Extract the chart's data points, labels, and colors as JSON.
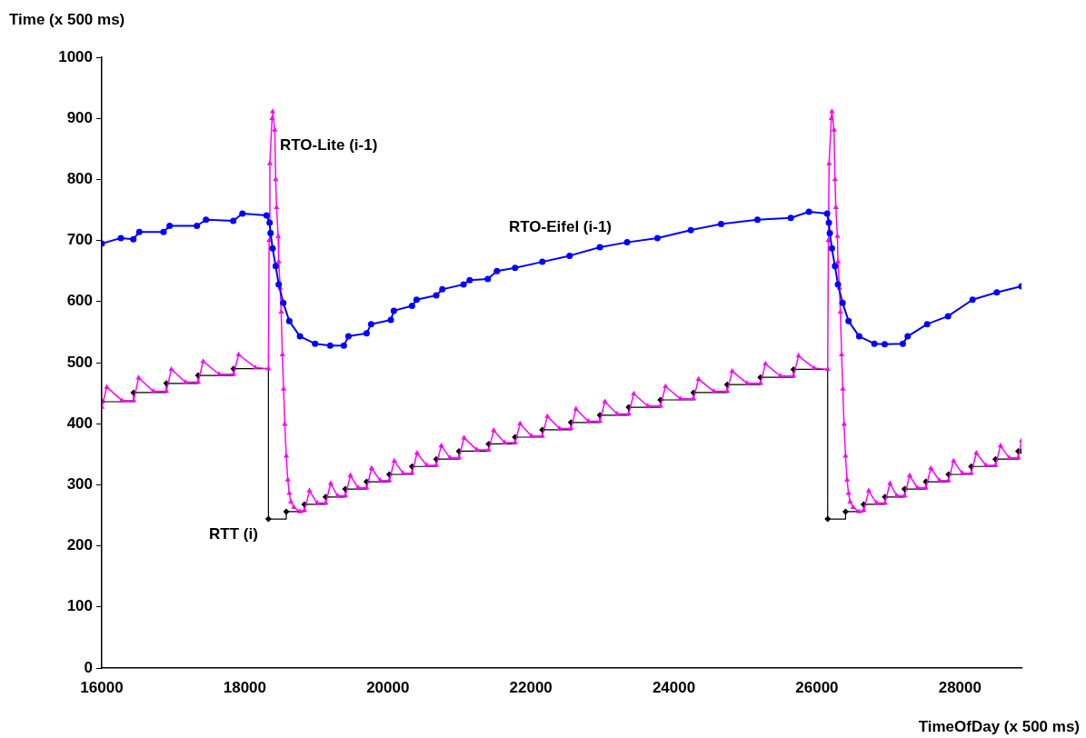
{
  "chart_data": {
    "type": "line",
    "xlabel": "TimeOfDay (x 500 ms)",
    "ylabel": "Time (x 500 ms)",
    "xlim": [
      16000,
      28860
    ],
    "xticks": [
      16000,
      18000,
      20000,
      22000,
      24000,
      26000,
      28000
    ],
    "ylim": [
      0,
      1000
    ],
    "yticks": [
      0,
      100,
      200,
      300,
      400,
      500,
      600,
      700,
      800,
      900,
      1000
    ],
    "grid": false,
    "series": [
      {
        "name": "RTO-Eifel (i-1)",
        "color": "#0000ff",
        "marker": "circle",
        "x": [
          16000,
          16267,
          16441,
          16525,
          16864,
          16949,
          17330,
          17457,
          17839,
          17966,
          18304,
          18347,
          18360,
          18389,
          18432,
          18474,
          18538,
          18622,
          18771,
          18983,
          19194,
          19385,
          19449,
          19703,
          19766,
          20042,
          20084,
          20338,
          20402,
          20677,
          20762,
          21059,
          21144,
          21398,
          21525,
          21779,
          22160,
          22541,
          22965,
          23346,
          23770,
          24236,
          24660,
          25168,
          25634,
          25888,
          26142,
          26167,
          26180,
          26209,
          26252,
          26294,
          26358,
          26442,
          26591,
          26803,
          26947,
          27201,
          27269,
          27541,
          27833,
          28176,
          28515,
          28860
        ],
        "values": [
          695,
          704,
          702,
          714,
          714,
          724,
          724,
          734,
          732,
          744,
          741,
          729,
          712,
          687,
          658,
          628,
          598,
          568,
          543,
          531,
          528,
          528,
          543,
          548,
          563,
          570,
          585,
          593,
          603,
          610,
          620,
          628,
          635,
          637,
          650,
          655,
          665,
          675,
          689,
          697,
          704,
          717,
          727,
          734,
          737,
          747,
          744,
          729,
          712,
          687,
          658,
          628,
          598,
          568,
          543,
          531,
          530,
          531,
          543,
          563,
          576,
          603,
          615,
          625
        ]
      },
      {
        "name": "RTO-Lite (i-1)",
        "color": "#ff00ff",
        "marker": "triangle",
        "x": [
          16000,
          16070,
          16280,
          16445,
          16515,
          16720,
          16903,
          16973,
          17170,
          17347,
          17417,
          17640,
          17843,
          17913,
          18150,
          18330,
          18340,
          18350,
          18381,
          18389,
          18419,
          18432,
          18444,
          18466,
          18474,
          18495,
          18508,
          18525,
          18542,
          18559,
          18580,
          18601,
          18622,
          18644,
          18686,
          18771,
          18834,
          18904,
          19012,
          19131,
          19201,
          19296,
          19406,
          19476,
          19584,
          19703,
          19773,
          19893,
          20020,
          20090,
          20211,
          20338,
          20408,
          20541,
          20677,
          20747,
          20868,
          20995,
          21065,
          21244,
          21410,
          21480,
          21631,
          21779,
          21849,
          22008,
          22160,
          22230,
          22400,
          22560,
          22630,
          22803,
          22965,
          23035,
          23207,
          23368,
          23438,
          23634,
          23812,
          23882,
          24089,
          24274,
          24344,
          24557,
          24745,
          24815,
          25024,
          25210,
          25280,
          25487,
          25672,
          25742,
          25959,
          26150,
          26160,
          26170,
          26201,
          26209,
          26239,
          26252,
          26264,
          26286,
          26294,
          26315,
          26328,
          26345,
          26362,
          26379,
          26400,
          26421,
          26442,
          26464,
          26506,
          26591,
          26654,
          26724,
          26832,
          26951,
          27021,
          27116,
          27226,
          27296,
          27404,
          27523,
          27593,
          27713,
          27840,
          27910,
          28031,
          28158,
          28228,
          28361,
          28497,
          28567,
          28688,
          28815,
          28860
        ],
        "values": [
          427,
          460,
          438,
          438,
          475,
          453,
          453,
          489,
          468,
          468,
          502,
          481,
          481,
          513,
          492,
          490,
          700,
          826,
          900,
          911,
          881,
          800,
          754,
          707,
          665,
          622,
          583,
          513,
          457,
          399,
          347,
          308,
          286,
          272,
          263,
          256,
          258,
          290,
          270,
          270,
          302,
          282,
          282,
          315,
          295,
          295,
          327,
          307,
          307,
          339,
          319,
          319,
          352,
          332,
          332,
          364,
          344,
          344,
          377,
          357,
          357,
          389,
          369,
          369,
          400,
          380,
          380,
          412,
          392,
          392,
          424,
          404,
          404,
          436,
          416,
          416,
          449,
          429,
          429,
          461,
          441,
          441,
          473,
          453,
          453,
          486,
          466,
          466,
          498,
          478,
          478,
          511,
          491,
          489,
          700,
          826,
          900,
          911,
          881,
          800,
          754,
          707,
          665,
          622,
          583,
          513,
          457,
          399,
          347,
          308,
          286,
          272,
          263,
          256,
          258,
          290,
          270,
          270,
          302,
          282,
          282,
          315,
          295,
          295,
          327,
          307,
          307,
          339,
          319,
          319,
          352,
          332,
          332,
          364,
          344,
          344,
          372
        ]
      },
      {
        "name": "RTT (i)",
        "type": "step",
        "color": "#000000",
        "marker": "diamond",
        "x": [
          16000,
          16445,
          16903,
          17347,
          17843,
          18330,
          18580,
          18834,
          19131,
          19406,
          19703,
          20020,
          20338,
          20677,
          20995,
          21410,
          21779,
          22160,
          22560,
          22965,
          23368,
          23812,
          24274,
          24745,
          25210,
          25672,
          26150,
          26400,
          26654,
          26951,
          27226,
          27523,
          27840,
          28158,
          28497,
          28815,
          28860
        ],
        "values": [
          436,
          451,
          466,
          479,
          490,
          244,
          256,
          268,
          280,
          293,
          305,
          317,
          330,
          342,
          355,
          367,
          378,
          390,
          402,
          414,
          427,
          439,
          451,
          464,
          476,
          489,
          244,
          256,
          268,
          280,
          293,
          305,
          317,
          330,
          342,
          355,
          355
        ]
      }
    ]
  }
}
